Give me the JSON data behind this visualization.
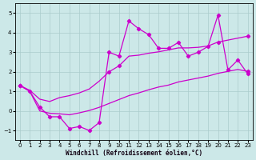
{
  "title": "",
  "xlabel": "Windchill (Refroidissement éolien,°C)",
  "background_color": "#cce8e8",
  "grid_color": "#aacccc",
  "line_color": "#cc00cc",
  "xlim": [
    -0.5,
    23.5
  ],
  "ylim": [
    -1.5,
    5.5
  ],
  "xticks": [
    0,
    1,
    2,
    3,
    4,
    5,
    6,
    7,
    8,
    9,
    10,
    11,
    12,
    13,
    14,
    15,
    16,
    17,
    18,
    19,
    20,
    21,
    22,
    23
  ],
  "yticks": [
    -1,
    0,
    1,
    2,
    3,
    4,
    5
  ],
  "x": [
    0,
    1,
    2,
    3,
    4,
    5,
    6,
    7,
    8,
    9,
    10,
    11,
    12,
    13,
    14,
    15,
    16,
    17,
    18,
    19,
    20,
    21,
    22,
    23
  ],
  "y_zigzag": [
    1.3,
    1.0,
    0.2,
    -0.3,
    -0.3,
    -0.9,
    -0.8,
    -1.0,
    -0.6,
    3.0,
    2.8,
    4.6,
    4.2,
    3.9,
    3.2,
    3.2,
    3.5,
    2.8,
    3.0,
    3.3,
    4.9,
    2.1,
    2.6,
    1.9
  ],
  "y_upper_band": [
    1.3,
    1.05,
    0.6,
    0.48,
    0.68,
    0.78,
    0.92,
    1.12,
    1.52,
    2.0,
    2.3,
    2.8,
    2.85,
    2.95,
    3.02,
    3.12,
    3.22,
    3.22,
    3.25,
    3.32,
    3.52,
    3.62,
    3.72,
    3.82
  ],
  "y_lower_band": [
    1.3,
    1.0,
    0.0,
    -0.12,
    -0.15,
    -0.2,
    -0.1,
    0.02,
    0.18,
    0.38,
    0.58,
    0.78,
    0.92,
    1.08,
    1.22,
    1.32,
    1.48,
    1.58,
    1.68,
    1.78,
    1.92,
    2.02,
    2.12,
    2.02
  ],
  "zigzag_marker_every": [
    0,
    1,
    2,
    3,
    4,
    5,
    6,
    7,
    8,
    9,
    10,
    11,
    12,
    13,
    14,
    15,
    16,
    17,
    18,
    19,
    20,
    21,
    22,
    23
  ],
  "upper_marker_every": [
    0,
    9,
    10,
    20,
    23
  ],
  "lower_marker_every": [
    0,
    23
  ]
}
